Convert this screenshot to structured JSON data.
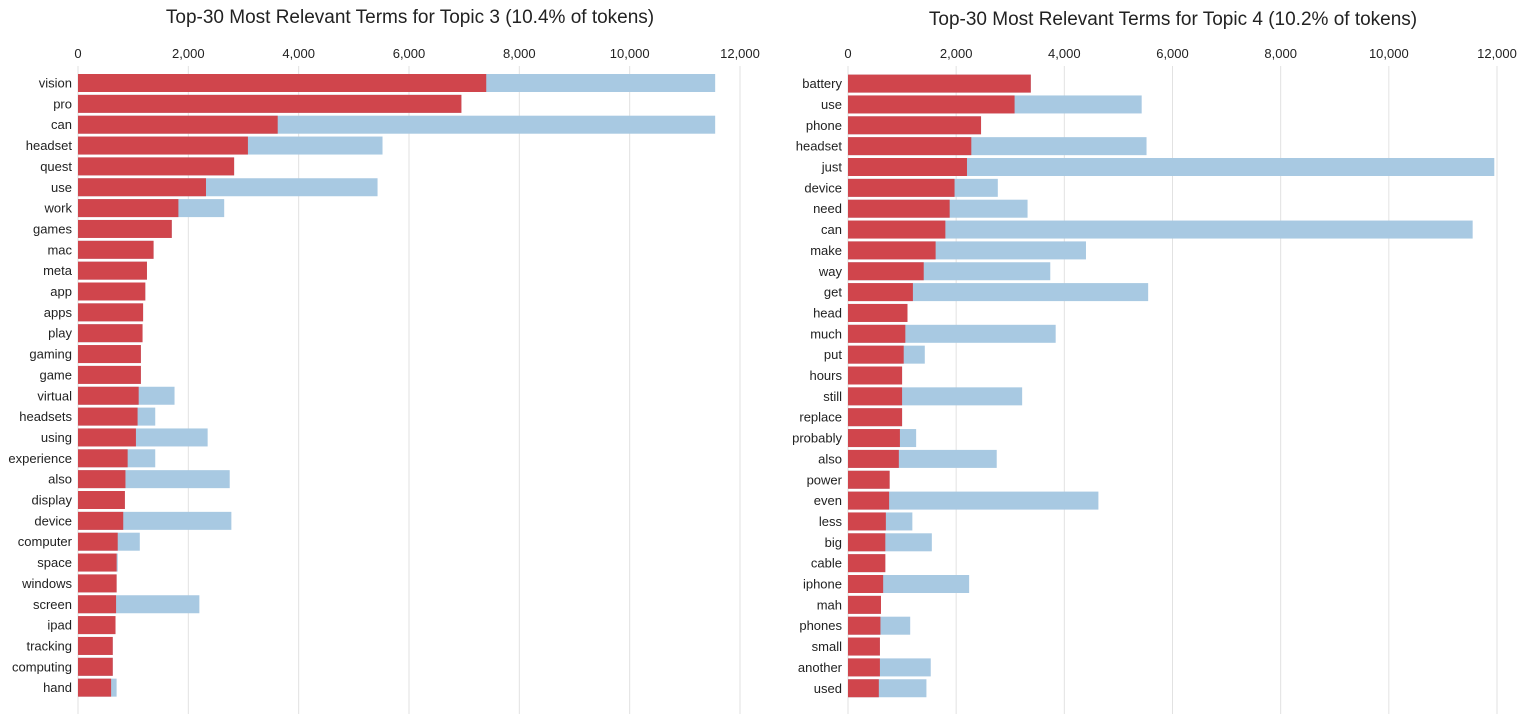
{
  "colors": {
    "topic": "#d0454c",
    "overall": "#a8c9e2",
    "grid": "#e2e2e2"
  },
  "chart_data": [
    {
      "type": "bar",
      "orientation": "horizontal",
      "stacked": "overlay",
      "title": "Top-30 Most Relevant Terms for Topic 3 (10.4% of tokens)",
      "xlim": [
        0,
        12000
      ],
      "xticks": [
        "0",
        "2,000",
        "4,000",
        "6,000",
        "8,000",
        "10,000",
        "12,000"
      ],
      "grid": true,
      "categories": [
        "vision",
        "pro",
        "can",
        "headset",
        "quest",
        "use",
        "work",
        "games",
        "mac",
        "meta",
        "app",
        "apps",
        "play",
        "gaming",
        "game",
        "virtual",
        "headsets",
        "using",
        "experience",
        "also",
        "display",
        "device",
        "computer",
        "space",
        "windows",
        "screen",
        "ipad",
        "tracking",
        "computing",
        "hand"
      ],
      "series": [
        {
          "values": [
            11550,
            6950,
            11550,
            5520,
            2830,
            5430,
            2650,
            1700,
            1370,
            1250,
            1220,
            1180,
            1170,
            1140,
            1140,
            1750,
            1400,
            2350,
            1400,
            2750,
            850,
            2780,
            1120,
            720,
            700,
            2200,
            680,
            630,
            630,
            700
          ]
        },
        {
          "values": [
            7400,
            6950,
            3620,
            3080,
            2830,
            2320,
            1820,
            1700,
            1370,
            1250,
            1220,
            1180,
            1170,
            1140,
            1140,
            1100,
            1080,
            1050,
            900,
            860,
            850,
            820,
            720,
            700,
            700,
            690,
            680,
            630,
            630,
            600
          ]
        }
      ]
    },
    {
      "type": "bar",
      "orientation": "horizontal",
      "stacked": "overlay",
      "title": "Top-30 Most Relevant Terms for Topic 4 (10.2% of tokens)",
      "xlim": [
        0,
        12000
      ],
      "xticks": [
        "0",
        "2,000",
        "4,000",
        "6,000",
        "8,000",
        "10,000",
        "12,000"
      ],
      "grid": true,
      "categories": [
        "battery",
        "use",
        "phone",
        "headset",
        "just",
        "device",
        "need",
        "can",
        "make",
        "way",
        "get",
        "head",
        "much",
        "put",
        "hours",
        "still",
        "replace",
        "probably",
        "also",
        "power",
        "even",
        "less",
        "big",
        "cable",
        "iphone",
        "mah",
        "phones",
        "small",
        "another",
        "used"
      ],
      "series": [
        {
          "values": [
            3380,
            5430,
            2460,
            5520,
            11950,
            2770,
            3320,
            11550,
            4400,
            3740,
            5550,
            1100,
            3840,
            1420,
            1000,
            3220,
            1000,
            1260,
            2750,
            770,
            4630,
            1190,
            1550,
            690,
            2240,
            610,
            1150,
            590,
            1530,
            1450
          ]
        },
        {
          "values": [
            3380,
            3080,
            2460,
            2280,
            2200,
            1970,
            1880,
            1800,
            1620,
            1400,
            1200,
            1100,
            1060,
            1030,
            1000,
            1000,
            1000,
            960,
            940,
            770,
            760,
            700,
            690,
            690,
            650,
            610,
            600,
            590,
            590,
            570
          ]
        }
      ]
    }
  ]
}
